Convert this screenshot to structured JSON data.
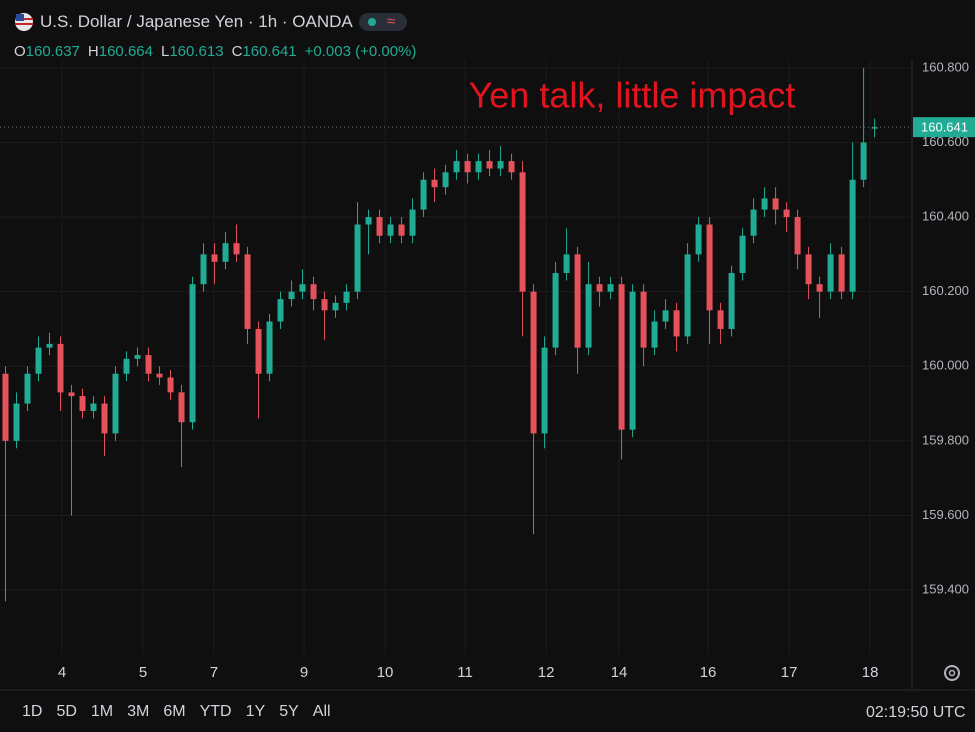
{
  "chart_data": {
    "type": "candlestick",
    "title": "U.S. Dollar / Japanese Yen · 1h · OANDA",
    "legend_labels": [
      "O",
      "H",
      "L",
      "C"
    ],
    "legend_values": [
      160.637,
      160.664,
      160.613,
      160.641
    ],
    "change": "+0.003 (+0.00%)",
    "annotation": "Yen talk, little impact",
    "last_price": 160.641,
    "up_color": "#22ab94",
    "down_color": "#e5525c",
    "annotation_color": "#e3141e",
    "grid": true,
    "xlim": [
      -0.5,
      82.4
    ],
    "ylim": [
      159.226,
      160.821
    ],
    "xticks": [
      {
        "value": 5.14,
        "label": "4"
      },
      {
        "value": 12.5,
        "label": "5"
      },
      {
        "value": 18.95,
        "label": "7"
      },
      {
        "value": 27.14,
        "label": "9"
      },
      {
        "value": 34.5,
        "label": "10"
      },
      {
        "value": 41.77,
        "label": "11"
      },
      {
        "value": 49.14,
        "label": "12"
      },
      {
        "value": 55.77,
        "label": "14"
      },
      {
        "value": 63.86,
        "label": "16"
      },
      {
        "value": 71.23,
        "label": "17"
      },
      {
        "value": 78.59,
        "label": "18"
      }
    ],
    "yticks": [
      {
        "value": 159.4,
        "label": "159.400"
      },
      {
        "value": 159.6,
        "label": "159.600"
      },
      {
        "value": 159.8,
        "label": "159.800"
      },
      {
        "value": 160.0,
        "label": "160.000"
      },
      {
        "value": 160.2,
        "label": "160.200"
      },
      {
        "value": 160.4,
        "label": "160.400"
      },
      {
        "value": 160.6,
        "label": "160.600"
      },
      {
        "value": 160.8,
        "label": "160.800"
      }
    ],
    "open": [
      159.98,
      159.8,
      159.9,
      159.98,
      160.05,
      160.06,
      159.93,
      159.92,
      159.88,
      159.9,
      159.82,
      159.98,
      160.02,
      160.03,
      159.98,
      159.97,
      159.93,
      159.85,
      160.22,
      160.3,
      160.28,
      160.33,
      160.3,
      160.1,
      159.98,
      160.12,
      160.18,
      160.2,
      160.22,
      160.18,
      160.15,
      160.17,
      160.2,
      160.38,
      160.4,
      160.35,
      160.38,
      160.35,
      160.42,
      160.5,
      160.48,
      160.52,
      160.55,
      160.52,
      160.55,
      160.53,
      160.55,
      160.52,
      160.2,
      159.82,
      160.05,
      160.25,
      160.3,
      160.05,
      160.22,
      160.2,
      160.22,
      159.83,
      160.2,
      160.05,
      160.12,
      160.15,
      160.08,
      160.3,
      160.38,
      160.15,
      160.1,
      160.25,
      160.35,
      160.42,
      160.45,
      160.42,
      160.4,
      160.3,
      160.22,
      160.2,
      160.3,
      160.2,
      160.5,
      160.637
    ],
    "high": [
      160.0,
      159.93,
      160.0,
      160.08,
      160.09,
      160.08,
      159.95,
      159.94,
      159.92,
      159.92,
      160.0,
      160.04,
      160.05,
      160.05,
      160.0,
      159.99,
      159.95,
      160.24,
      160.33,
      160.33,
      160.36,
      160.38,
      160.32,
      160.12,
      160.14,
      160.2,
      160.23,
      160.26,
      160.24,
      160.2,
      160.19,
      160.22,
      160.44,
      160.42,
      160.42,
      160.4,
      160.4,
      160.45,
      160.52,
      160.53,
      160.54,
      160.58,
      160.57,
      160.57,
      160.58,
      160.59,
      160.57,
      160.55,
      160.22,
      160.08,
      160.28,
      160.37,
      160.32,
      160.28,
      160.24,
      160.24,
      160.24,
      160.22,
      160.22,
      160.15,
      160.18,
      160.17,
      160.33,
      160.4,
      160.4,
      160.17,
      160.27,
      160.37,
      160.45,
      160.48,
      160.48,
      160.44,
      160.42,
      160.32,
      160.24,
      160.33,
      160.32,
      160.6,
      160.8,
      160.664
    ],
    "low": [
      159.37,
      159.78,
      159.88,
      159.96,
      160.03,
      159.88,
      159.6,
      159.86,
      159.86,
      159.76,
      159.8,
      159.96,
      160.0,
      159.96,
      159.95,
      159.91,
      159.73,
      159.83,
      160.2,
      160.22,
      160.26,
      160.28,
      160.06,
      159.86,
      159.96,
      160.1,
      160.16,
      160.18,
      160.15,
      160.07,
      160.13,
      160.15,
      160.18,
      160.3,
      160.33,
      160.33,
      160.33,
      160.33,
      160.4,
      160.44,
      160.46,
      160.5,
      160.49,
      160.5,
      160.51,
      160.51,
      160.5,
      160.08,
      159.55,
      159.78,
      160.03,
      160.23,
      159.98,
      160.03,
      160.16,
      160.18,
      159.75,
      159.81,
      160.0,
      160.03,
      160.1,
      160.04,
      160.06,
      160.28,
      160.06,
      160.06,
      160.08,
      160.23,
      160.33,
      160.4,
      160.38,
      160.36,
      160.26,
      160.18,
      160.13,
      160.18,
      160.18,
      160.18,
      160.48,
      160.613
    ],
    "close": [
      159.8,
      159.9,
      159.98,
      160.05,
      160.06,
      159.93,
      159.92,
      159.88,
      159.9,
      159.82,
      159.98,
      160.02,
      160.03,
      159.98,
      159.97,
      159.93,
      159.85,
      160.22,
      160.3,
      160.28,
      160.33,
      160.3,
      160.1,
      159.98,
      160.12,
      160.18,
      160.2,
      160.22,
      160.18,
      160.15,
      160.17,
      160.2,
      160.38,
      160.4,
      160.35,
      160.38,
      160.35,
      160.42,
      160.5,
      160.48,
      160.52,
      160.55,
      160.52,
      160.55,
      160.53,
      160.55,
      160.52,
      160.2,
      159.82,
      160.05,
      160.25,
      160.3,
      160.05,
      160.22,
      160.2,
      160.22,
      159.83,
      160.2,
      160.05,
      160.12,
      160.15,
      160.08,
      160.3,
      160.38,
      160.15,
      160.1,
      160.25,
      160.35,
      160.42,
      160.45,
      160.42,
      160.4,
      160.3,
      160.22,
      160.2,
      160.3,
      160.2,
      160.5,
      160.6,
      160.641
    ]
  },
  "toolbar": {
    "ranges": [
      "1D",
      "5D",
      "1M",
      "3M",
      "6M",
      "YTD",
      "1Y",
      "5Y",
      "All"
    ],
    "time": "02:19:50 UTC"
  }
}
